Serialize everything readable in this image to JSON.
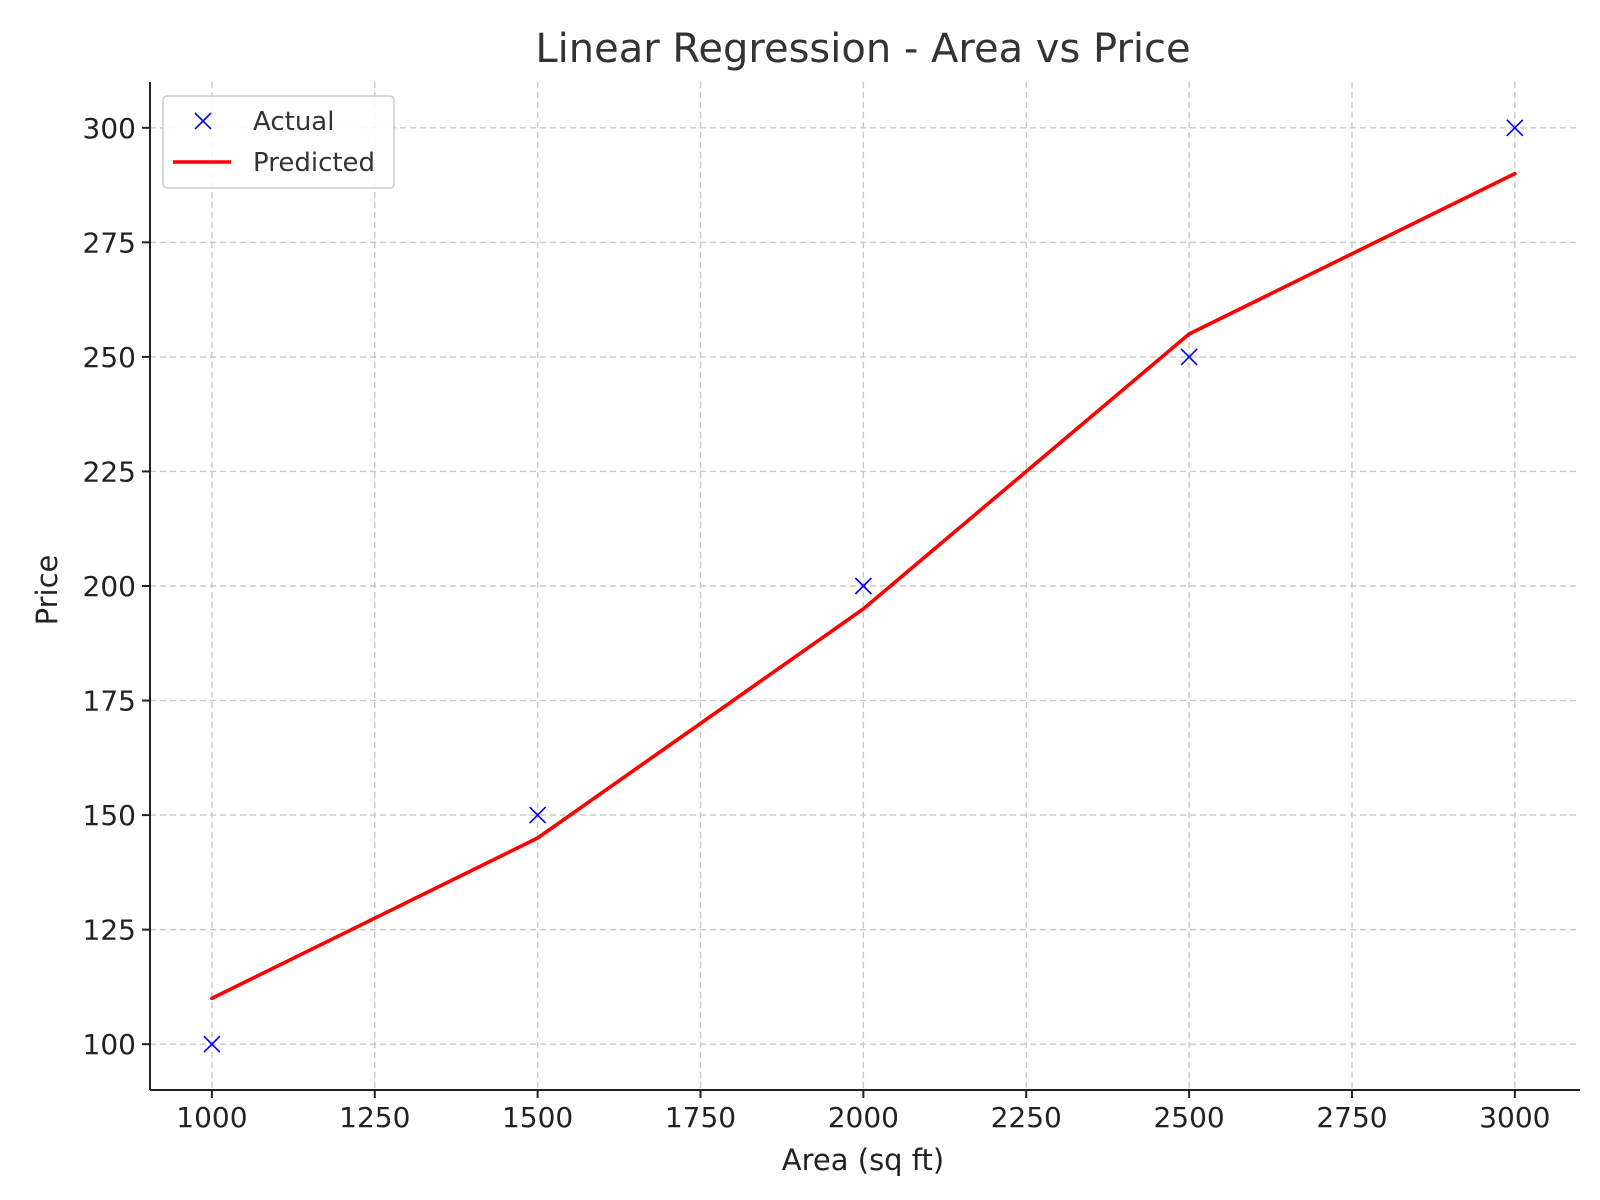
{
  "chart_data": {
    "type": "line",
    "title": "Linear Regression - Area vs Price",
    "xlabel": "Area (sq ft)",
    "ylabel": "Price",
    "xlim": [
      905,
      3100
    ],
    "ylim": [
      90,
      310
    ],
    "xticks": [
      1000,
      1250,
      1500,
      1750,
      2000,
      2250,
      2500,
      2750,
      3000
    ],
    "yticks": [
      100,
      125,
      150,
      175,
      200,
      225,
      250,
      275,
      300
    ],
    "grid": true,
    "legend_position": "top-left",
    "series": [
      {
        "name": "Actual",
        "kind": "scatter",
        "marker": "x",
        "color": "#0000ff",
        "x": [
          1000,
          1500,
          2000,
          2500,
          3000
        ],
        "y": [
          100,
          150,
          200,
          250,
          300
        ]
      },
      {
        "name": "Predicted",
        "kind": "line",
        "color": "#ff0000",
        "x": [
          1000,
          1500,
          2000,
          2500,
          3000
        ],
        "y": [
          110,
          145,
          195,
          255,
          290
        ]
      }
    ]
  }
}
